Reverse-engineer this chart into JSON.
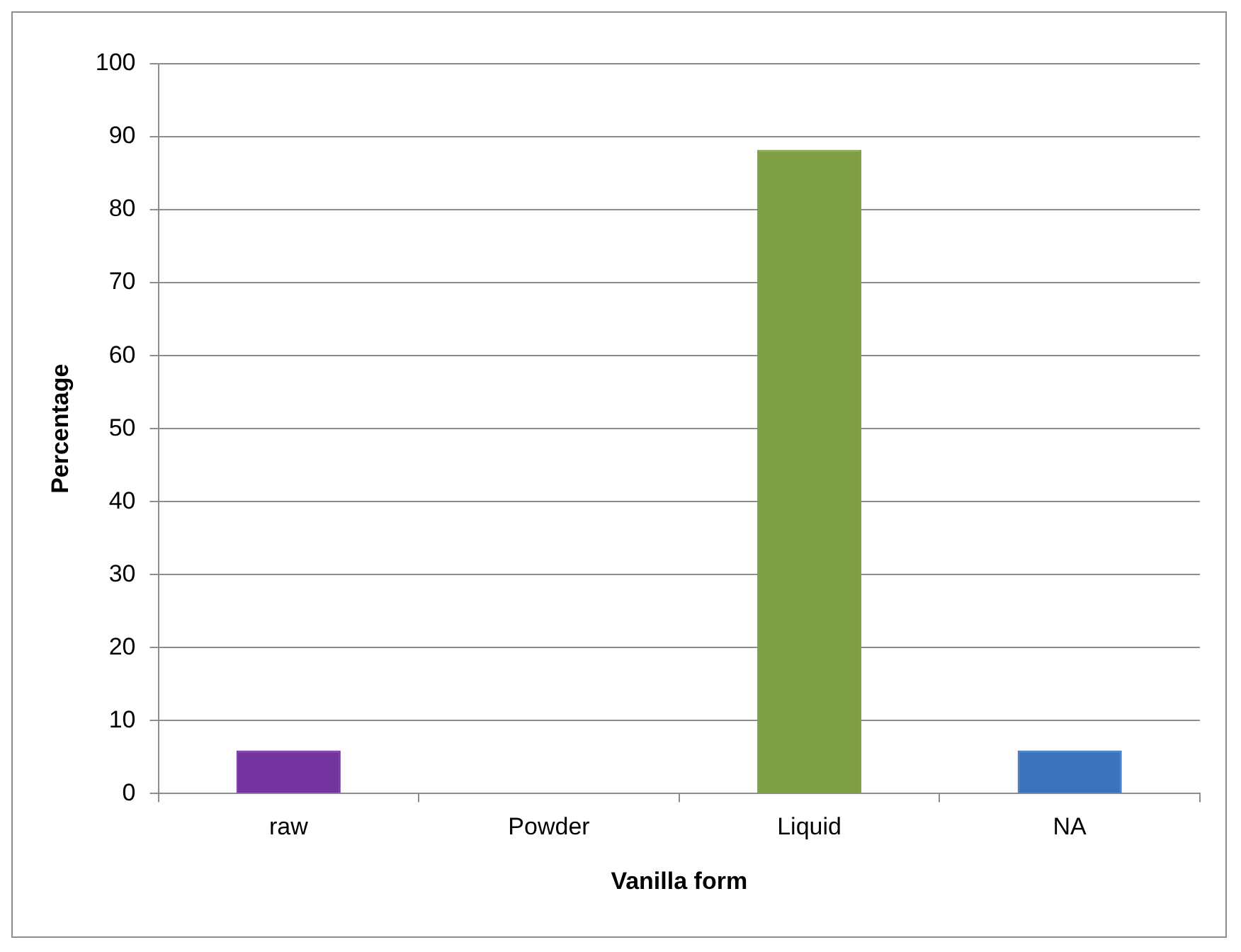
{
  "chart_data": {
    "type": "bar",
    "xlabel": "Vanilla form",
    "ylabel": "Percentage",
    "categories": [
      "raw",
      "Powder",
      "Liquid",
      "NA"
    ],
    "values": [
      5.9,
      0,
      88.2,
      5.9
    ],
    "colors": [
      "#7434a0",
      "#7f9f44",
      "#7f9f44",
      "#3b74bc"
    ],
    "ylim": [
      0,
      100
    ],
    "yticks": [
      0,
      10,
      20,
      30,
      40,
      50,
      60,
      70,
      80,
      90,
      100
    ],
    "grid": "y",
    "legend": false
  }
}
